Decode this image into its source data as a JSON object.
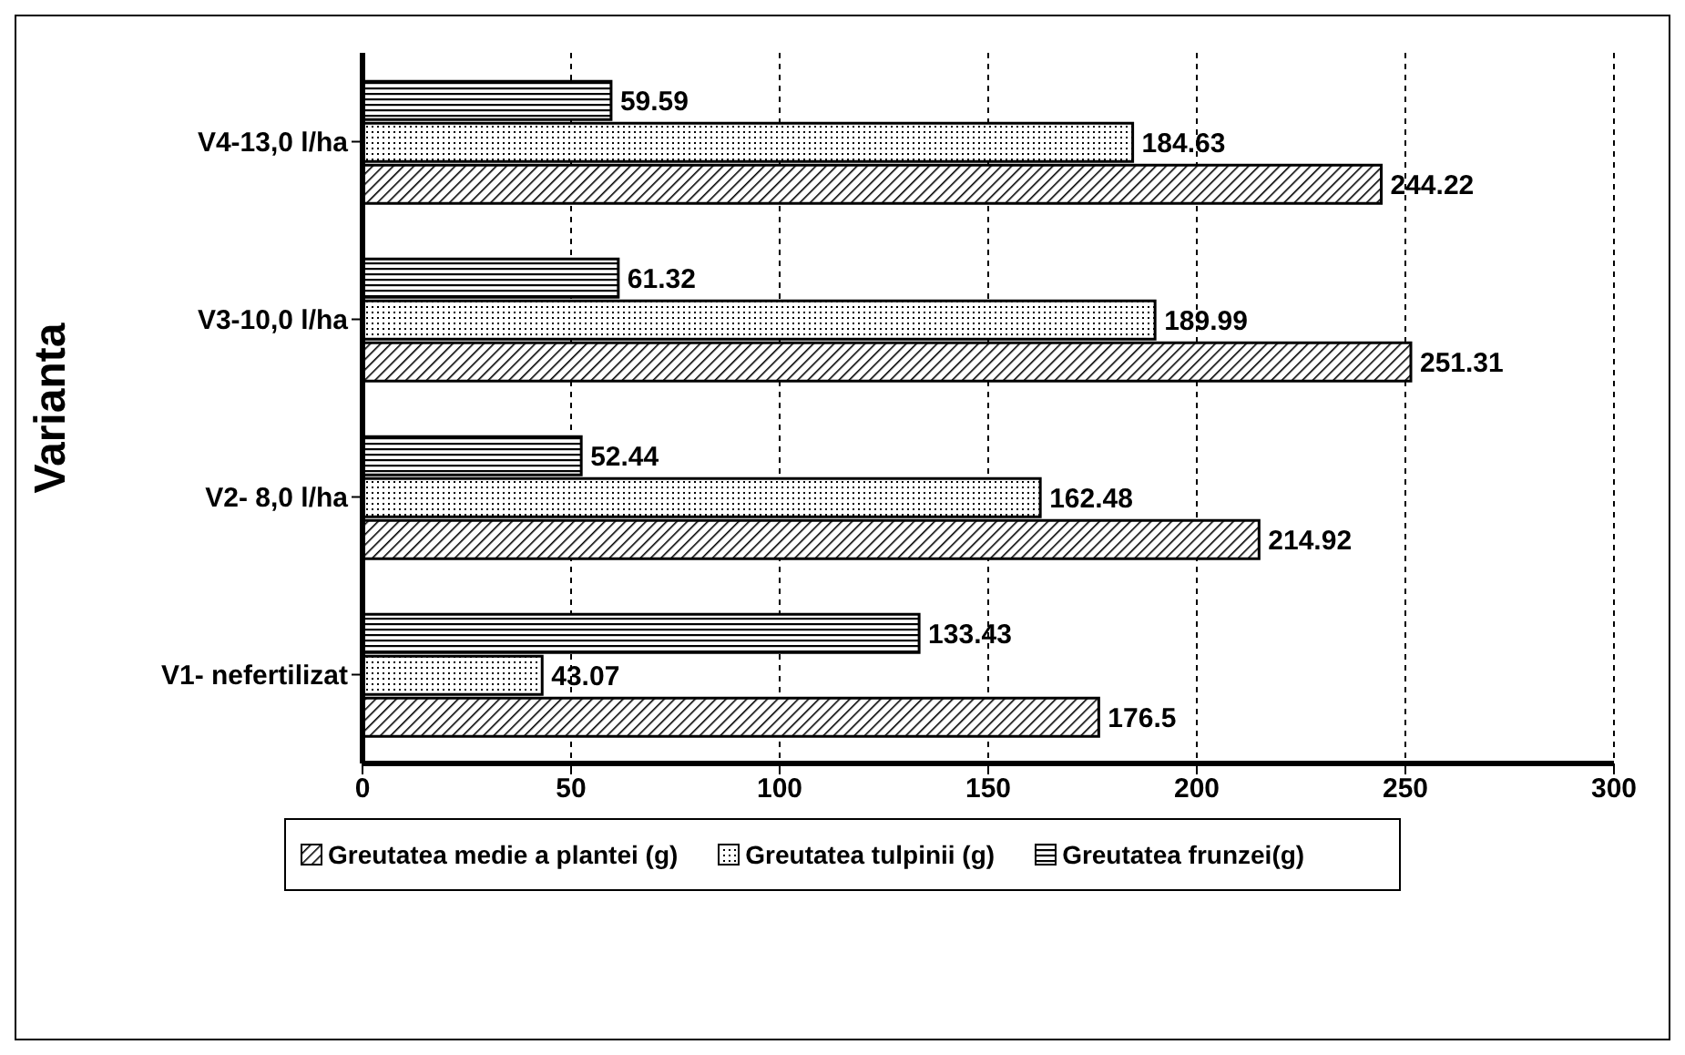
{
  "chart_data": {
    "type": "bar",
    "orientation": "horizontal",
    "ylabel": "Varianta",
    "categories": [
      "V4-13,0 l/ha",
      "V3-10,0 l/ha",
      "V2- 8,0 l/ha",
      "V1- nefertilizat"
    ],
    "series": [
      {
        "name": "Greutatea medie a plantei (g)",
        "color": "#000000",
        "values": [
          244.22,
          251.31,
          214.92,
          176.5
        ]
      },
      {
        "name": "Greutatea tulpinii (g)",
        "color": "#000000",
        "values": [
          184.63,
          189.99,
          162.48,
          43.07
        ]
      },
      {
        "name": "Greutatea frunzei(g)",
        "color": "#000000",
        "values": [
          59.59,
          61.32,
          52.44,
          133.43
        ]
      }
    ],
    "xlim": [
      0,
      300
    ],
    "xticks": [
      0,
      50,
      100,
      150,
      200,
      250,
      300
    ],
    "grid": "x",
    "legend": "bottom",
    "data_labels": true
  }
}
